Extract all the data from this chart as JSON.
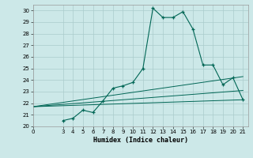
{
  "xlabel": "Humidex (Indice chaleur)",
  "bg_color": "#cce8e8",
  "grid_color": "#aacccc",
  "line_color": "#006655",
  "xlim": [
    0,
    21.5
  ],
  "ylim": [
    20,
    30.5
  ],
  "xticks": [
    0,
    3,
    4,
    5,
    6,
    7,
    8,
    9,
    10,
    11,
    12,
    13,
    14,
    15,
    16,
    17,
    18,
    19,
    20,
    21
  ],
  "yticks": [
    20,
    21,
    22,
    23,
    24,
    25,
    26,
    27,
    28,
    29,
    30
  ],
  "curve_main_x": [
    3,
    4,
    5,
    6,
    7,
    8,
    9,
    10,
    11,
    12,
    13,
    14,
    15,
    16,
    17,
    18,
    19,
    20,
    21
  ],
  "curve_main_y": [
    20.5,
    20.7,
    21.4,
    21.2,
    22.2,
    23.3,
    23.5,
    23.8,
    25.0,
    30.2,
    29.4,
    29.4,
    29.9,
    28.4,
    25.3,
    25.3,
    23.6,
    24.2,
    22.3
  ],
  "line1_x": [
    0,
    21
  ],
  "line1_y": [
    21.7,
    24.3
  ],
  "line2_x": [
    0,
    21
  ],
  "line2_y": [
    21.7,
    23.1
  ],
  "line3_x": [
    0,
    21
  ],
  "line3_y": [
    21.7,
    22.3
  ]
}
